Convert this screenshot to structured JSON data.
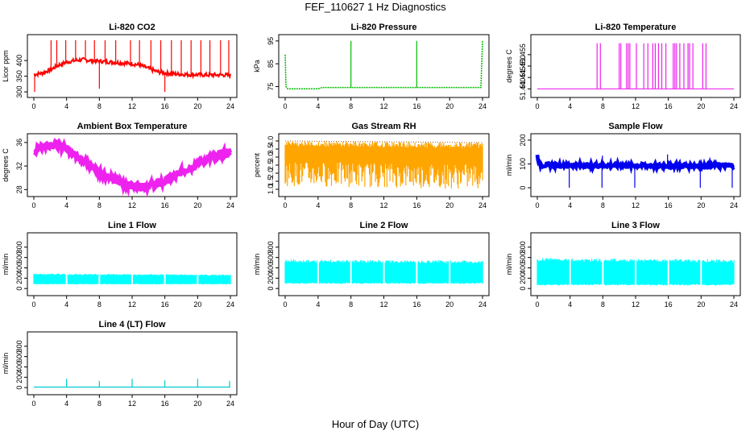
{
  "figure": {
    "title": "FEF_110627  1 Hz Diagnostics",
    "xlabel": "Hour of Day (UTC)"
  },
  "chart_data": [
    {
      "type": "line",
      "title": "Li-820 CO2",
      "ylabel": "Licor ppm",
      "color": "#ff0000",
      "xlim": [
        0,
        24
      ],
      "ylim": [
        295,
        470
      ],
      "xticks": [
        "0",
        "4",
        "8",
        "12",
        "16",
        "20",
        "24"
      ],
      "yticks": [
        "300",
        "350",
        "400"
      ],
      "x": [
        0,
        1,
        2,
        3,
        4,
        5,
        6,
        7,
        8,
        9,
        10,
        11,
        12,
        13,
        14,
        15,
        16,
        17,
        18,
        19,
        20,
        21,
        22,
        23,
        24
      ],
      "y": [
        355,
        360,
        370,
        385,
        395,
        400,
        403,
        400,
        398,
        396,
        394,
        392,
        390,
        385,
        375,
        365,
        360,
        358,
        356,
        355,
        355,
        354,
        354,
        354,
        353
      ],
      "spikes": [
        [
          0.1,
          300
        ],
        [
          2.1,
          465
        ],
        [
          2.8,
          465
        ],
        [
          3.9,
          465
        ],
        [
          5.1,
          465
        ],
        [
          6.3,
          465
        ],
        [
          7.4,
          465
        ],
        [
          8.0,
          310
        ],
        [
          8.7,
          465
        ],
        [
          10.0,
          465
        ],
        [
          11.8,
          465
        ],
        [
          12.9,
          465
        ],
        [
          14.3,
          465
        ],
        [
          15.5,
          465
        ],
        [
          16.0,
          300
        ],
        [
          16.8,
          465
        ],
        [
          18.0,
          465
        ],
        [
          19.2,
          465
        ],
        [
          20.4,
          465
        ],
        [
          21.5,
          465
        ],
        [
          22.8,
          465
        ],
        [
          23.8,
          465
        ]
      ]
    },
    {
      "type": "line",
      "title": "Li-820 Pressure",
      "ylabel": "kPa",
      "color": "#00bb00",
      "xlim": [
        0,
        24
      ],
      "ylim": [
        72,
        96
      ],
      "xticks": [
        "0",
        "4",
        "8",
        "12",
        "16",
        "20",
        "24"
      ],
      "yticks": [
        "75",
        "85",
        "95"
      ],
      "x": [
        0,
        0.1,
        0.3,
        4,
        4.5,
        8,
        12,
        16,
        20,
        23.8,
        24
      ],
      "y": [
        89,
        75,
        74,
        74,
        74.6,
        74.6,
        74.6,
        74.6,
        74.6,
        74.6,
        95
      ],
      "spikes": [
        [
          8.0,
          95
        ],
        [
          16.0,
          95
        ]
      ]
    },
    {
      "type": "line",
      "title": "Li-820 Temperature",
      "ylabel": "degrees C",
      "color": "#ee22ee",
      "xlim": [
        0,
        24
      ],
      "ylim": [
        51.438,
        51.462
      ],
      "xticks": [
        "0",
        "4",
        "8",
        "12",
        "16",
        "20",
        "24"
      ],
      "yticks": [
        "51.440",
        "51.445",
        "51.450",
        "51.455"
      ],
      "x": [
        0,
        24
      ],
      "y": [
        51.44,
        51.44
      ],
      "spikes": [
        [
          7.3,
          51.46
        ],
        [
          7.7,
          51.46
        ],
        [
          10.0,
          51.46
        ],
        [
          10.2,
          51.46
        ],
        [
          10.9,
          51.46
        ],
        [
          11.1,
          51.46
        ],
        [
          11.3,
          51.46
        ],
        [
          12.1,
          51.46
        ],
        [
          13.0,
          51.46
        ],
        [
          13.5,
          51.46
        ],
        [
          14.1,
          51.46
        ],
        [
          14.4,
          51.46
        ],
        [
          14.8,
          51.46
        ],
        [
          15.2,
          51.46
        ],
        [
          15.7,
          51.46
        ],
        [
          16.6,
          51.46
        ],
        [
          16.8,
          51.46
        ],
        [
          17.0,
          51.46
        ],
        [
          17.4,
          51.46
        ],
        [
          17.9,
          51.46
        ],
        [
          18.4,
          51.46
        ],
        [
          18.6,
          51.46
        ],
        [
          19.0,
          51.46
        ],
        [
          20.2,
          51.46
        ],
        [
          20.6,
          51.46
        ]
      ]
    },
    {
      "type": "line",
      "title": "Ambient Box Temperature",
      "ylabel": "degrees C",
      "color": "#ee22ee",
      "xlim": [
        0,
        24
      ],
      "ylim": [
        27.5,
        36.8
      ],
      "xticks": [
        "0",
        "4",
        "8",
        "12",
        "16",
        "20",
        "24"
      ],
      "yticks": [
        "28",
        "32",
        "36"
      ],
      "x": [
        0,
        1,
        2,
        3,
        4,
        5,
        6,
        7,
        8,
        9,
        10,
        11,
        12,
        13,
        14,
        15,
        16,
        17,
        18,
        19,
        20,
        21,
        22,
        23,
        24
      ],
      "y": [
        34.5,
        35.3,
        35.7,
        35.6,
        35.0,
        34.1,
        33.0,
        32.0,
        31.0,
        30.2,
        29.5,
        29.0,
        28.7,
        28.6,
        28.6,
        28.9,
        29.4,
        30.1,
        30.9,
        31.7,
        32.4,
        33.0,
        33.6,
        34.0,
        34.3
      ],
      "band": 0.5
    },
    {
      "type": "area",
      "title": "Gas Stream RH",
      "ylabel": "percent",
      "color": "#ffa500",
      "xlim": [
        0,
        24
      ],
      "ylim": [
        0.8,
        4.2
      ],
      "xticks": [
        "0",
        "4",
        "8",
        "12",
        "16",
        "20",
        "24"
      ],
      "yticks": [
        "1.0",
        "1.5",
        "2.0",
        "2.5",
        "3.0",
        "3.5",
        "4.0"
      ],
      "x": [
        0,
        24
      ],
      "y_upper": [
        4.0,
        3.9
      ],
      "y_lower": [
        1.2,
        1.0
      ]
    },
    {
      "type": "line",
      "title": "Sample Flow",
      "ylabel": "ml/min",
      "color": "#0000ee",
      "xlim": [
        0,
        24
      ],
      "ylim": [
        -20,
        210
      ],
      "xticks": [
        "0",
        "4",
        "8",
        "12",
        "16",
        "20",
        "24"
      ],
      "yticks": [
        "0",
        "100",
        "200"
      ],
      "x": [
        0,
        0.3,
        24
      ],
      "y": [
        135,
        95,
        92
      ],
      "spikes": [
        [
          3.9,
          0
        ],
        [
          7.9,
          0
        ],
        [
          7.95,
          135
        ],
        [
          11.9,
          0
        ],
        [
          15.9,
          140
        ],
        [
          19.9,
          0
        ],
        [
          23.8,
          0
        ]
      ],
      "band": 8
    },
    {
      "type": "area",
      "title": "Line 1 Flow",
      "ylabel": "ml/min",
      "color": "#00ffff",
      "xlim": [
        0,
        24
      ],
      "ylim": [
        -60,
        1000
      ],
      "xticks": [
        "0",
        "4",
        "8",
        "12",
        "16",
        "20",
        "24"
      ],
      "yticks": [
        "0",
        "200",
        "400",
        "600",
        "800"
      ],
      "x": [
        0,
        24
      ],
      "y_upper": [
        290,
        270
      ],
      "y_lower": [
        80,
        80
      ],
      "gaps": [
        4,
        8,
        12,
        16,
        20
      ]
    },
    {
      "type": "area",
      "title": "Line 2 Flow",
      "ylabel": "ml/min",
      "color": "#00ffff",
      "xlim": [
        0,
        24
      ],
      "ylim": [
        -60,
        1000
      ],
      "xticks": [
        "0",
        "4",
        "8",
        "12",
        "16",
        "20",
        "24"
      ],
      "yticks": [
        "0",
        "200",
        "400",
        "600",
        "800"
      ],
      "x": [
        0,
        24
      ],
      "y_upper": [
        560,
        540
      ],
      "y_lower": [
        90,
        90
      ],
      "gaps": [
        4,
        8,
        12,
        16,
        20
      ]
    },
    {
      "type": "area",
      "title": "Line 3 Flow",
      "ylabel": "ml/min",
      "color": "#00ffff",
      "xlim": [
        0,
        24
      ],
      "ylim": [
        -60,
        1000
      ],
      "xticks": [
        "0",
        "4",
        "8",
        "12",
        "16",
        "20",
        "24"
      ],
      "yticks": [
        "0",
        "200",
        "400",
        "600",
        "800"
      ],
      "x": [
        0,
        24
      ],
      "y_upper": [
        590,
        560
      ],
      "y_lower": [
        60,
        60
      ],
      "gaps": [
        4,
        8,
        12,
        16,
        20
      ]
    },
    {
      "type": "line",
      "title": "Line 4 (LT) Flow",
      "ylabel": "ml/min",
      "color": "#00cccc",
      "xlim": [
        0,
        24
      ],
      "ylim": [
        -60,
        1000
      ],
      "xticks": [
        "0",
        "4",
        "8",
        "12",
        "16",
        "20",
        "24"
      ],
      "yticks": [
        "0",
        "200",
        "400",
        "600",
        "800"
      ],
      "x": [
        0,
        24
      ],
      "y": [
        10,
        10
      ],
      "spikes": [
        [
          4.0,
          170
        ],
        [
          8.0,
          130
        ],
        [
          12.0,
          170
        ],
        [
          16.0,
          140
        ],
        [
          20.0,
          170
        ],
        [
          23.9,
          130
        ]
      ]
    }
  ]
}
